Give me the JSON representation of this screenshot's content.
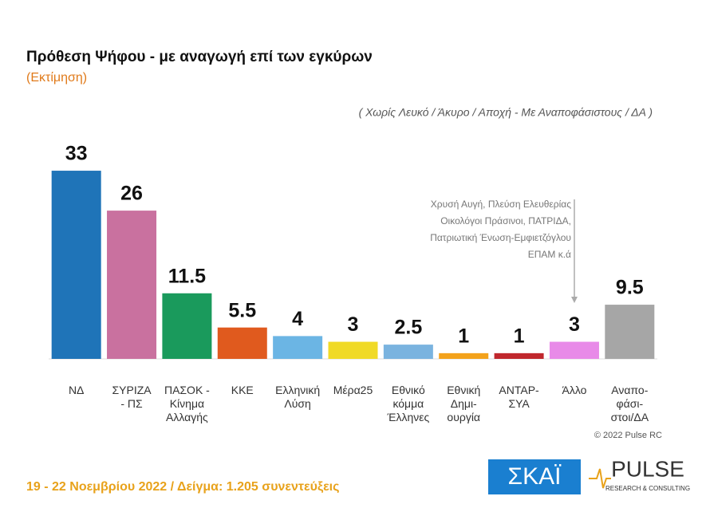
{
  "chart_data": {
    "type": "bar",
    "title": "Πρόθεση Ψήφου - με αναγωγή επί των εγκύρων",
    "subtitle": "(Εκτίμηση)",
    "note": "( Χωρίς Λευκό / Άκυρο / Αποχή  -  Με Αναποφάσιστους / ΔΑ )",
    "categories": [
      "ΝΔ",
      "ΣΥΡΙΖΑ\n- ΠΣ",
      "ΠΑΣΟΚ -\nΚίνημα\nΑλλαγής",
      "ΚΚΕ",
      "Ελληνική\nΛύση",
      "Μέρα25",
      "Εθνικό\nκόμμα\nΈλληνες",
      "Εθνική\nΔημι-\nουργία",
      "ΑΝΤΑΡ-\nΣΥΑ",
      "Άλλο",
      "Αναπο-\nφάσι-\nστοι/ΔΑ"
    ],
    "values": [
      33,
      26,
      11.5,
      5.5,
      4,
      3,
      2.5,
      1,
      1,
      3,
      9.5
    ],
    "colors": [
      "#1f74b8",
      "#c9719f",
      "#1a9a5c",
      "#e05a1e",
      "#6bb5e4",
      "#f0da26",
      "#7ab3df",
      "#f3a21b",
      "#c0272d",
      "#e88ae8",
      "#a6a6a6"
    ],
    "ylim": [
      0,
      40
    ],
    "annotation": [
      "Χρυσή Αυγή, Πλεύση Ελευθερίας",
      "Οικολόγοι Πράσινοι, ΠΑΤΡΙΔΑ,",
      "Πατριωτική Ένωση-Εμφιετζόγλου",
      "ΕΠΑΜ  κ.ά"
    ],
    "copyright": "© 2022 Pulse RC",
    "footer": "19 - 22 Νοεμβρίου 2022  /  Δείγμα:  1.205 συνεντεύξεις",
    "logos": {
      "skai": "ΣΚΑΪ",
      "pulse": "PULSE",
      "pulse_sub": "RESEARCH & CONSULTING"
    }
  }
}
